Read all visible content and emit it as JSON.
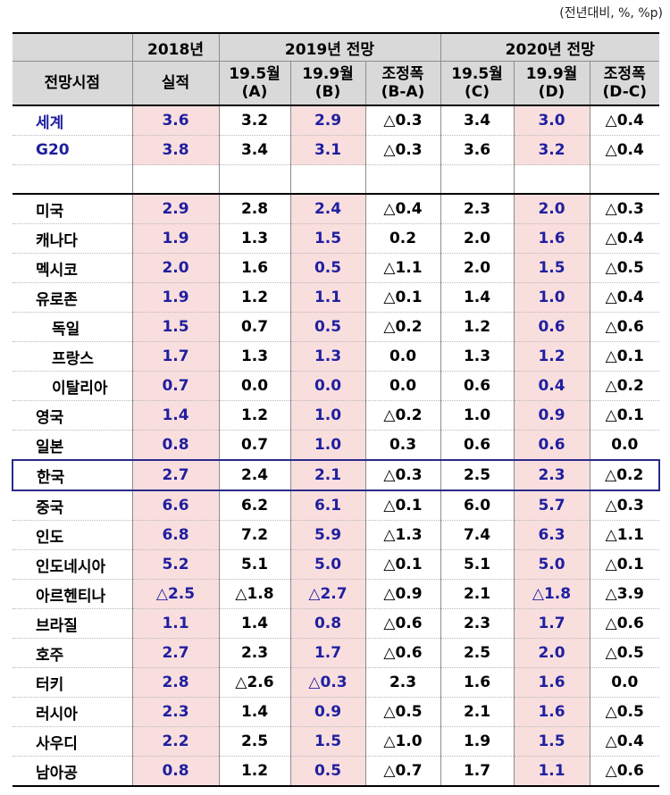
{
  "unit_note": "(전년대비, %, %p)",
  "header": {
    "col_2018": "2018년",
    "col_2019": "2019년 전망",
    "col_2020": "2020년 전망",
    "row_label": "전망시점",
    "actual": "실적",
    "c_195_a_1": "19.5월",
    "c_195_a_2": "(A)",
    "c_199_b_1": "19.9월",
    "c_199_b_2": "(B)",
    "c_adj_ba_1": "조정폭",
    "c_adj_ba_2": "(B-A)",
    "c_195_c_1": "19.5월",
    "c_195_c_2": "(C)",
    "c_199_d_1": "19.9월",
    "c_199_d_2": "(D)",
    "c_adj_dc_1": "조정폭",
    "c_adj_dc_2": "(D-C)"
  },
  "rows": [
    {
      "name": "세계",
      "v": [
        "3.6",
        "3.2",
        "2.9",
        "△0.3",
        "3.4",
        "3.0",
        "△0.4"
      ]
    },
    {
      "name": "G20",
      "v": [
        "3.8",
        "3.4",
        "3.1",
        "△0.3",
        "3.6",
        "3.2",
        "△0.4"
      ]
    },
    {
      "name": "미국",
      "v": [
        "2.9",
        "2.8",
        "2.4",
        "△0.4",
        "2.3",
        "2.0",
        "△0.3"
      ]
    },
    {
      "name": "캐나다",
      "v": [
        "1.9",
        "1.3",
        "1.5",
        "0.2",
        "2.0",
        "1.6",
        "△0.4"
      ]
    },
    {
      "name": "멕시코",
      "v": [
        "2.0",
        "1.6",
        "0.5",
        "△1.1",
        "2.0",
        "1.5",
        "△0.5"
      ]
    },
    {
      "name": "유로존",
      "v": [
        "1.9",
        "1.2",
        "1.1",
        "△0.1",
        "1.4",
        "1.0",
        "△0.4"
      ]
    },
    {
      "name": "독일",
      "v": [
        "1.5",
        "0.7",
        "0.5",
        "△0.2",
        "1.2",
        "0.6",
        "△0.6"
      ]
    },
    {
      "name": "프랑스",
      "v": [
        "1.7",
        "1.3",
        "1.3",
        "0.0",
        "1.3",
        "1.2",
        "△0.1"
      ]
    },
    {
      "name": "이탈리아",
      "v": [
        "0.7",
        "0.0",
        "0.0",
        "0.0",
        "0.6",
        "0.4",
        "△0.2"
      ]
    },
    {
      "name": "영국",
      "v": [
        "1.4",
        "1.2",
        "1.0",
        "△0.2",
        "1.0",
        "0.9",
        "△0.1"
      ]
    },
    {
      "name": "일본",
      "v": [
        "0.8",
        "0.7",
        "1.0",
        "0.3",
        "0.6",
        "0.6",
        "0.0"
      ]
    },
    {
      "name": "한국",
      "v": [
        "2.7",
        "2.4",
        "2.1",
        "△0.3",
        "2.5",
        "2.3",
        "△0.2"
      ]
    },
    {
      "name": "중국",
      "v": [
        "6.6",
        "6.2",
        "6.1",
        "△0.1",
        "6.0",
        "5.7",
        "△0.3"
      ]
    },
    {
      "name": "인도",
      "v": [
        "6.8",
        "7.2",
        "5.9",
        "△1.3",
        "7.4",
        "6.3",
        "△1.1"
      ]
    },
    {
      "name": "인도네시아",
      "v": [
        "5.2",
        "5.1",
        "5.0",
        "△0.1",
        "5.1",
        "5.0",
        "△0.1"
      ]
    },
    {
      "name": "아르헨티나",
      "v": [
        "△2.5",
        "△1.8",
        "△2.7",
        "△0.9",
        "2.1",
        "△1.8",
        "△3.9"
      ]
    },
    {
      "name": "브라질",
      "v": [
        "1.1",
        "1.4",
        "0.8",
        "△0.6",
        "2.3",
        "1.7",
        "△0.6"
      ]
    },
    {
      "name": "호주",
      "v": [
        "2.7",
        "2.3",
        "1.7",
        "△0.6",
        "2.5",
        "2.0",
        "△0.5"
      ]
    },
    {
      "name": "터키",
      "v": [
        "2.8",
        "△2.6",
        "△0.3",
        "2.3",
        "1.6",
        "1.6",
        "0.0"
      ]
    },
    {
      "name": "러시아",
      "v": [
        "2.3",
        "1.4",
        "0.9",
        "△0.5",
        "2.1",
        "1.6",
        "△0.5"
      ]
    },
    {
      "name": "사우디",
      "v": [
        "2.2",
        "2.5",
        "1.5",
        "△1.0",
        "1.9",
        "1.5",
        "△0.4"
      ]
    },
    {
      "name": "남아공",
      "v": [
        "0.8",
        "1.2",
        "0.5",
        "△0.7",
        "1.7",
        "1.1",
        "△0.6"
      ]
    }
  ]
}
